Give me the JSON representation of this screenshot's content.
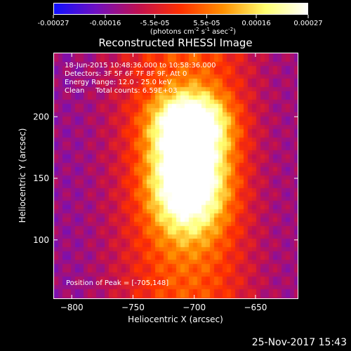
{
  "colorbar": {
    "ticks": [
      "-0.00027",
      "-0.00016",
      "-5.5e-05",
      "5.5e-05",
      "0.00016",
      "0.00027"
    ],
    "min": -0.00027,
    "max": 0.00027,
    "colors": [
      "#1010ff",
      "#7010c0",
      "#c01050",
      "#ff3000",
      "#ff9000",
      "#ffff70",
      "#ffffff"
    ]
  },
  "image": {
    "title": "Reconstructed RHESSI Image",
    "info_lines": [
      "18-Jun-2015 10:48:36.000 to 10:58:36.000",
      "Detectors: 3F 5F 6F 7F 8F 9F, Att 0",
      "Energy Range: 12.0 - 25.0 keV",
      "Clean     Total counts: 6.59E+03"
    ],
    "peak_label": "Position of Peak = [-705,148]",
    "date_stamp": "25-Nov-2017 15:43"
  },
  "chart_data": {
    "type": "heatmap",
    "title": "Reconstructed RHESSI Image",
    "xlabel": "Heliocentric X (arcsec)",
    "ylabel": "Heliocentric Y (arcsec)",
    "colorbar_label": "(photons cm-2 s-1 asec-2)",
    "xlim": [
      -815,
      -615
    ],
    "ylim": [
      52,
      252
    ],
    "xticks": [
      -800,
      -750,
      -700,
      -650
    ],
    "yticks": [
      100,
      150,
      200
    ],
    "peak": [
      -705,
      148
    ],
    "sources": [
      {
        "x": -705,
        "y": 148,
        "peak": 0.00027
      },
      {
        "x": -703,
        "y": 195,
        "peak": 0.00022
      }
    ]
  }
}
